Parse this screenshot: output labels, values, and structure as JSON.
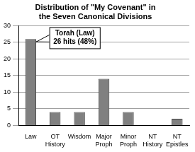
{
  "chart_data": {
    "type": "bar",
    "title": "Distribution of \"My Covenant\" in the Seven Canonical Divisions",
    "categories": [
      "Law",
      "OT History",
      "Wisdom",
      "Major Proph",
      "Minor Proph",
      "NT History",
      "NT Epistles"
    ],
    "values": [
      26,
      4,
      4,
      14,
      4,
      0,
      2
    ],
    "color": "#808080",
    "ylim": [
      0,
      30
    ],
    "yticks": [
      0,
      5,
      10,
      15,
      20,
      25,
      30
    ],
    "grid": true,
    "annotations": [
      "Torah (Law)",
      "26 hits (48%)"
    ]
  }
}
